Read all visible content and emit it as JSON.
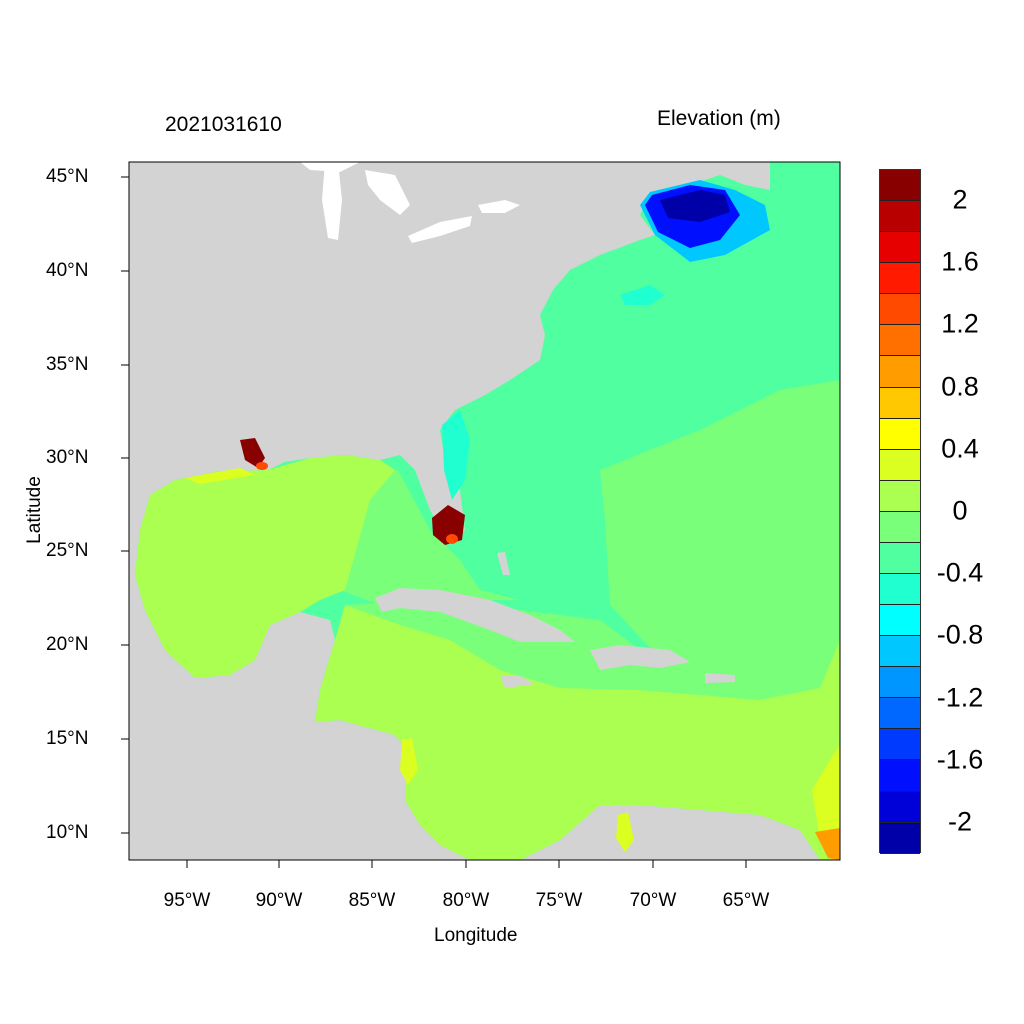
{
  "header": {
    "timestamp": "2021031610",
    "variable": "Elevation (m)"
  },
  "axes": {
    "xlabel": "Longitude",
    "ylabel": "Latitude",
    "xticks": [
      "95°W",
      "90°W",
      "85°W",
      "80°W",
      "75°W",
      "70°W",
      "65°W"
    ],
    "yticks": [
      "45°N",
      "40°N",
      "35°N",
      "30°N",
      "25°N",
      "20°N",
      "15°N",
      "10°N"
    ],
    "lon_range": [
      -98.1,
      -60.0
    ],
    "lat_range": [
      8.6,
      45.8
    ]
  },
  "colorbar": {
    "labels": [
      "2",
      "1.6",
      "1.2",
      "0.8",
      "0.4",
      "0",
      "-0.4",
      "-0.8",
      "-1.2",
      "-1.6",
      "-2"
    ],
    "levels": [
      2.0,
      1.8,
      1.6,
      1.4,
      1.2,
      1.0,
      0.8,
      0.6,
      0.4,
      0.2,
      0.0,
      -0.2,
      -0.4,
      -0.6,
      -0.8,
      -1.0,
      -1.2,
      -1.4,
      -1.6,
      -1.8,
      -2.0
    ],
    "colors": [
      "#880000",
      "#b80000",
      "#e60000",
      "#ff1a00",
      "#ff4a00",
      "#ff7000",
      "#ff9c00",
      "#ffc800",
      "#ffff00",
      "#daff20",
      "#aaff50",
      "#7aff7a",
      "#50ffa0",
      "#20ffd0",
      "#00ffff",
      "#00c8ff",
      "#0096ff",
      "#0068ff",
      "#003aff",
      "#0010ff",
      "#0000d8",
      "#0000a8"
    ]
  },
  "map_colors": {
    "land": "#d3d3d3",
    "lakes": "#ffffff"
  }
}
